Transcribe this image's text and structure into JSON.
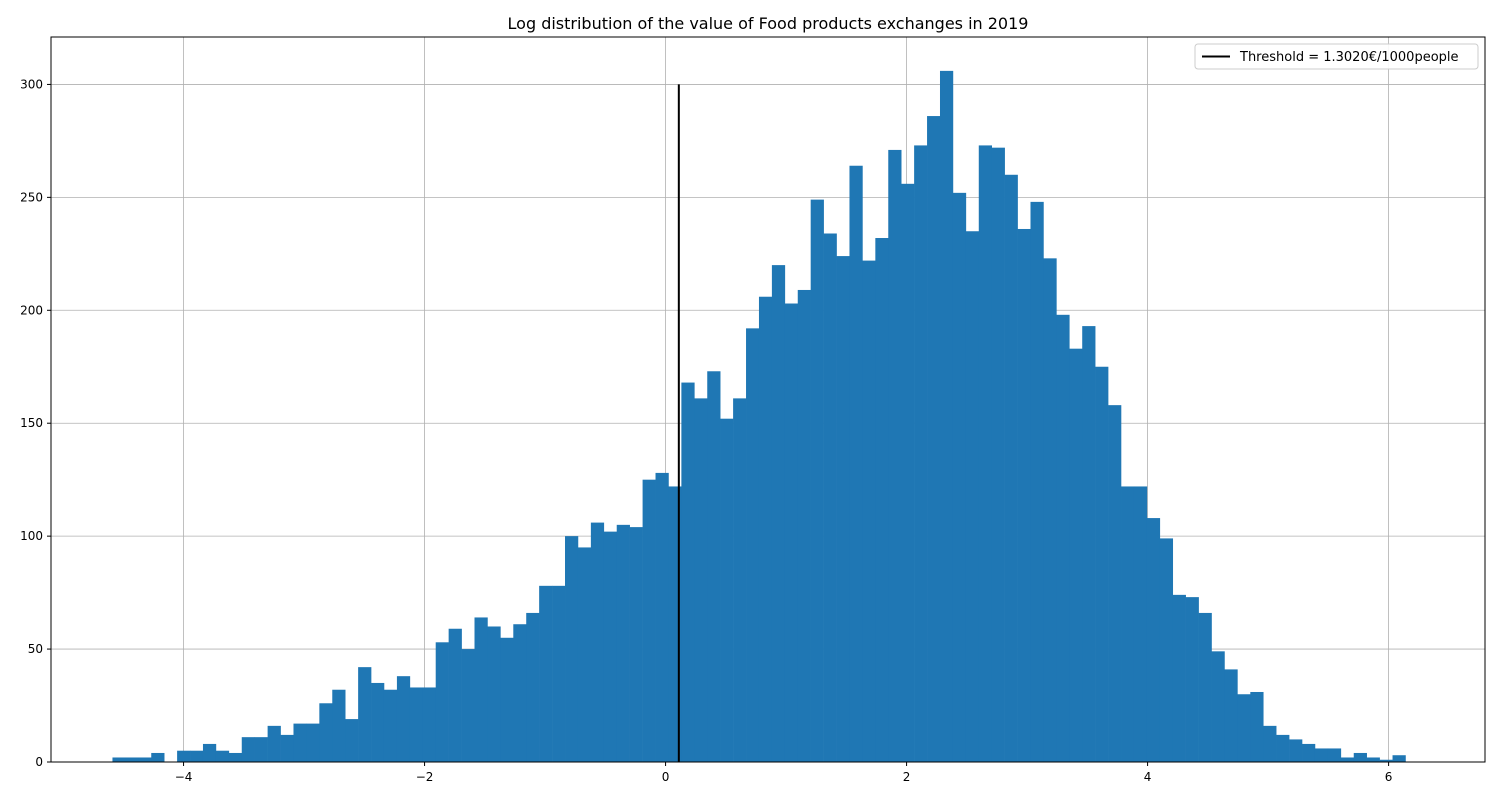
{
  "chart_data": {
    "type": "bar",
    "title": "Log distribution of the value of Food products exchanges in 2019",
    "xlabel": "",
    "ylabel": "",
    "xlim": [
      -5.1,
      6.8
    ],
    "ylim": [
      0,
      321
    ],
    "grid": true,
    "legend_position": "top-right",
    "bar_color": "#1f77b4",
    "threshold_color": "#000000",
    "bin_start": -4.59,
    "bin_width": 0.1073,
    "values": [
      2,
      2,
      2,
      4,
      0,
      5,
      5,
      8,
      5,
      4,
      11,
      11,
      16,
      12,
      17,
      17,
      26,
      32,
      19,
      42,
      35,
      32,
      38,
      33,
      33,
      53,
      59,
      50,
      64,
      60,
      55,
      61,
      66,
      78,
      78,
      100,
      95,
      106,
      102,
      105,
      104,
      125,
      128,
      122,
      168,
      161,
      173,
      152,
      161,
      192,
      206,
      220,
      203,
      209,
      249,
      234,
      224,
      264,
      222,
      232,
      271,
      256,
      273,
      286,
      306,
      252,
      235,
      273,
      272,
      260,
      236,
      248,
      223,
      198,
      183,
      193,
      175,
      158,
      122,
      122,
      108,
      99,
      74,
      73,
      66,
      49,
      41,
      30,
      31,
      16,
      12,
      10,
      8,
      6,
      6,
      2,
      4,
      2,
      1,
      3
    ],
    "x_ticks": [
      -4,
      -2,
      0,
      2,
      4,
      6
    ],
    "x_tick_labels": [
      "−4",
      "−2",
      "0",
      "2",
      "4",
      "6"
    ],
    "y_ticks": [
      0,
      50,
      100,
      150,
      200,
      250,
      300
    ],
    "y_tick_labels": [
      "0",
      "50",
      "100",
      "150",
      "200",
      "250",
      "300"
    ],
    "threshold": {
      "x": 0.11,
      "y_max": 300,
      "label": "Threshold = 1.3020€/1000people"
    }
  }
}
